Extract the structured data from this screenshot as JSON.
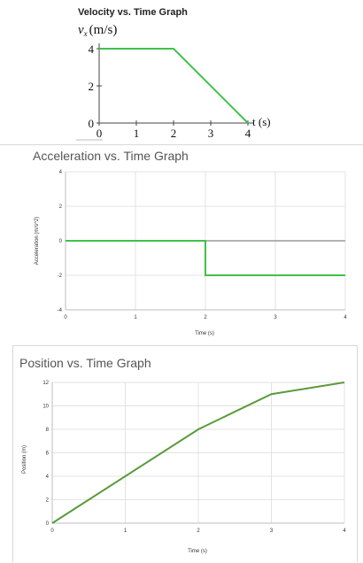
{
  "chart_data": [
    {
      "type": "line",
      "title": "Velocity vs. Time Graph",
      "ylabel": "v",
      "ylabel_sub": "x",
      "ylabel_unit": "(m/s)",
      "xlabel": "t (s)",
      "x_ticks": [
        "0",
        "1",
        "2",
        "3",
        "4"
      ],
      "y_ticks": [
        "0",
        "2",
        "4"
      ],
      "xlim": [
        0,
        4
      ],
      "ylim": [
        0,
        4
      ],
      "grid": false,
      "series": [
        {
          "x": [
            0,
            2,
            4
          ],
          "values": [
            4,
            4,
            0
          ],
          "color": "#3fc24a"
        }
      ]
    },
    {
      "type": "line",
      "title": "Acceleration vs. Time Graph",
      "ylabel": "Acceleration (m/s^2)",
      "xlabel": "Time (s)",
      "x_ticks": [
        "0",
        "1",
        "2",
        "3",
        "4"
      ],
      "y_ticks": [
        "4",
        "2",
        "0",
        "-2",
        "-4"
      ],
      "xlim": [
        0,
        4
      ],
      "ylim": [
        -4,
        4
      ],
      "grid": true,
      "series": [
        {
          "x": [
            0,
            2,
            2,
            4
          ],
          "values": [
            0,
            0,
            -2,
            -2
          ],
          "color": "#3fc24a"
        }
      ]
    },
    {
      "type": "line",
      "title": "Position vs. Time Graph",
      "ylabel": "Position (m)",
      "xlabel": "Time (s)",
      "x_ticks": [
        "0",
        "1",
        "2",
        "3",
        "4"
      ],
      "y_ticks": [
        "12",
        "10",
        "8",
        "6",
        "4",
        "2",
        "0"
      ],
      "xlim": [
        0,
        4
      ],
      "ylim": [
        0,
        12
      ],
      "grid": true,
      "series": [
        {
          "x": [
            0,
            2,
            3,
            4
          ],
          "values": [
            0,
            8,
            11,
            12
          ],
          "color": "#5a9a3a"
        }
      ]
    }
  ]
}
